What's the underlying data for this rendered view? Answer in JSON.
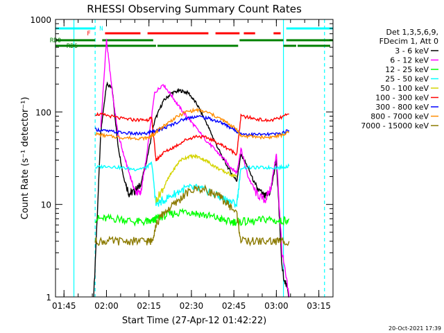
{
  "chart_data": {
    "type": "line",
    "title": "RHESSI Observing Summary Count Rates",
    "xlabel": "Start Time (27-Apr-12 01:42:22)",
    "ylabel": "Count Rate (s⁻¹ detector⁻¹)",
    "yscale": "log",
    "ylim": [
      1,
      1000
    ],
    "xlim_minutes": [
      102,
      200
    ],
    "x_ticks": [
      "01:45",
      "02:00",
      "02:15",
      "02:30",
      "02:45",
      "03:00",
      "03:15"
    ],
    "x_tick_minutes": [
      105,
      120,
      135,
      150,
      165,
      180,
      195
    ],
    "y_ticks": [
      "1",
      "10",
      "100",
      "1000"
    ],
    "y_tick_values": [
      1,
      10,
      100,
      1000
    ],
    "legend_header": [
      "Det 1,3,5,6,9,",
      "FDecim 1, Att 0"
    ],
    "legend_position": "right",
    "series": [
      {
        "name": "3 - 6 keV",
        "color": "#000000",
        "x": [
          115.5,
          118,
          120,
          122,
          124,
          126,
          128,
          130,
          132,
          134,
          137,
          140,
          143,
          146,
          149,
          152,
          155,
          158,
          161,
          164,
          166,
          167.5,
          170,
          173,
          176,
          178,
          180,
          182,
          184.5
        ],
        "y": [
          1,
          60,
          200,
          180,
          45,
          20,
          13,
          14,
          16,
          28,
          80,
          130,
          160,
          170,
          160,
          120,
          80,
          50,
          32,
          22,
          18,
          35,
          25,
          15,
          12,
          14,
          30,
          2,
          1
        ]
      },
      {
        "name": "6 - 12 keV",
        "color": "#ff00ff",
        "x": [
          118,
          120,
          122,
          124,
          126,
          128,
          130,
          132,
          134,
          137,
          140,
          143,
          146,
          149,
          152,
          155,
          158,
          161,
          164,
          166,
          167.5,
          170,
          173,
          176,
          178,
          180,
          182,
          184.5
        ],
        "y": [
          70,
          600,
          170,
          60,
          35,
          22,
          14,
          13,
          30,
          160,
          200,
          150,
          110,
          85,
          65,
          50,
          40,
          32,
          25,
          22,
          40,
          20,
          13,
          11,
          15,
          35,
          3,
          1
        ]
      },
      {
        "name": "12 - 25 keV",
        "color": "#00ff00",
        "x": [
          116,
          120,
          125,
          130,
          134,
          136,
          137.5,
          140,
          144,
          148,
          152,
          156,
          160,
          163,
          166,
          167.5,
          172,
          177,
          181,
          184.5
        ],
        "y": [
          7,
          7,
          7,
          6.5,
          6.5,
          6.5,
          7,
          7.5,
          8,
          8.5,
          8,
          7.5,
          7,
          6.5,
          6.5,
          6.5,
          6.5,
          7,
          6.5,
          7
        ]
      },
      {
        "name": "25 - 50 keV",
        "color": "#00ffff",
        "x": [
          116,
          120,
          125,
          130,
          134,
          136,
          137.5,
          140,
          144,
          148,
          152,
          156,
          160,
          163,
          166,
          167.5,
          172,
          177,
          181,
          184.5
        ],
        "y": [
          25,
          26,
          25,
          24,
          25,
          28,
          10,
          11,
          13,
          15,
          15,
          14,
          12,
          11,
          10,
          25,
          25,
          25,
          25,
          26
        ]
      },
      {
        "name": "50 - 100 keV",
        "color": "#d4d400",
        "x": [
          137.5,
          140,
          143,
          146,
          149,
          152,
          155,
          158,
          161,
          164,
          166
        ],
        "y": [
          11,
          15,
          22,
          30,
          33,
          33,
          30,
          26,
          23,
          21,
          20
        ]
      },
      {
        "name": "100 - 300 keV",
        "color": "#ff0000",
        "x": [
          116,
          120,
          125,
          130,
          134,
          136,
          137.5,
          140,
          144,
          148,
          152,
          156,
          160,
          163,
          166,
          167.5,
          172,
          177,
          181,
          184.5
        ],
        "y": [
          95,
          92,
          85,
          82,
          82,
          85,
          30,
          36,
          42,
          50,
          55,
          52,
          45,
          40,
          35,
          90,
          85,
          80,
          85,
          95
        ]
      },
      {
        "name": "300 - 800 keV",
        "color": "#0000ff",
        "x": [
          116,
          120,
          125,
          130,
          134,
          136,
          137.5,
          140,
          144,
          148,
          152,
          156,
          160,
          163,
          166,
          167.5,
          172,
          177,
          181,
          184.5
        ],
        "y": [
          65,
          62,
          60,
          58,
          58,
          62,
          62,
          66,
          75,
          85,
          90,
          85,
          78,
          70,
          62,
          58,
          57,
          57,
          58,
          63
        ]
      },
      {
        "name": "800 - 7000 keV",
        "color": "#ff8c00",
        "x": [
          116,
          120,
          125,
          130,
          134,
          136,
          137.5,
          140,
          144,
          148,
          152,
          156,
          160,
          163,
          166,
          167.5,
          172,
          177,
          181,
          184.5
        ],
        "y": [
          58,
          55,
          53,
          52,
          52,
          55,
          60,
          70,
          85,
          100,
          105,
          98,
          85,
          75,
          65,
          55,
          54,
          53,
          55,
          60
        ]
      },
      {
        "name": "7000 - 15000 keV",
        "color": "#8b7a00",
        "x": [
          116,
          120,
          125,
          130,
          134,
          136,
          137.5,
          140,
          144,
          148,
          152,
          156,
          160,
          163,
          166,
          167.5,
          172,
          177,
          181,
          184.5
        ],
        "y": [
          4,
          4,
          4,
          4,
          4,
          4,
          6,
          8,
          10,
          13,
          15,
          14,
          12,
          10,
          8,
          4,
          4,
          4,
          4,
          4
        ]
      }
    ],
    "flag_bars": [
      {
        "label": "N",
        "color": "#00ffff",
        "segments": [
          [
            102,
            116
          ],
          [
            183.5,
            200
          ]
        ]
      },
      {
        "label": "F",
        "color": "#ff0000",
        "segments": [
          [
            119.5,
            132
          ],
          [
            134.5,
            156
          ],
          [
            158.5,
            167
          ],
          [
            168.5,
            172.5
          ],
          [
            179,
            181.5
          ]
        ]
      },
      {
        "label": "RD0",
        "color": "#008000",
        "segments": [
          [
            102,
            116
          ],
          [
            118.5,
            136.5
          ],
          [
            167,
            182.5
          ],
          [
            183.5,
            200
          ]
        ]
      },
      {
        "label": "RD6",
        "color": "#008000",
        "segments": [
          [
            102,
            137.5
          ],
          [
            138,
            166.5
          ],
          [
            182.5,
            187
          ],
          [
            187.5,
            199
          ]
        ]
      }
    ],
    "vertical_markers": [
      {
        "x": 108.5,
        "color": "#00ffff",
        "style": "solid"
      },
      {
        "x": 116.0,
        "color": "#00ffff",
        "style": "dashed"
      },
      {
        "x": 182.5,
        "color": "#00ffff",
        "style": "solid"
      },
      {
        "x": 197.0,
        "color": "#00ffff",
        "style": "dashed"
      }
    ],
    "timestamp": "20-Oct-2021 17:39"
  }
}
